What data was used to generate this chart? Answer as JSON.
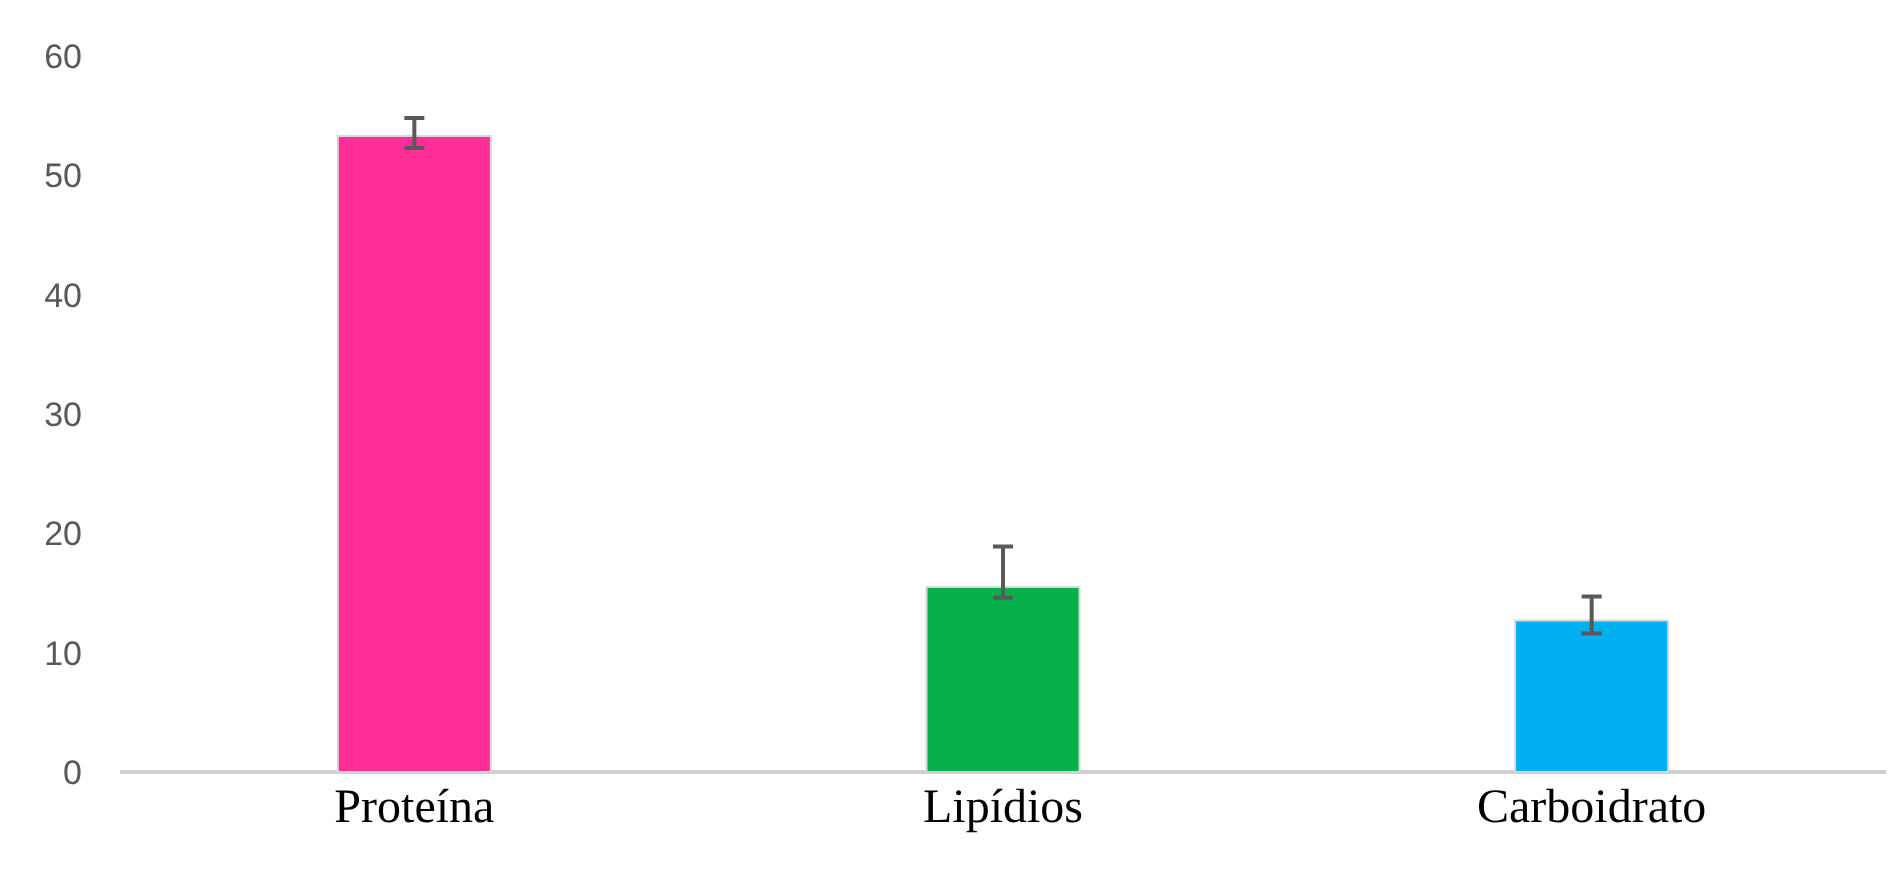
{
  "chart_data": {
    "type": "bar",
    "categories": [
      "Proteína",
      "Lipídios",
      "Carboidrato"
    ],
    "values": [
      53.3,
      15.5,
      12.7
    ],
    "colors": [
      "#ff2d95",
      "#08b04a",
      "#00b0f0"
    ],
    "errors": [
      [
        52.3,
        54.8
      ],
      [
        14.6,
        18.9
      ],
      [
        11.6,
        14.7
      ]
    ],
    "ylim": [
      0,
      60
    ],
    "yticks": [
      0,
      10,
      20,
      30,
      40,
      50,
      60
    ],
    "grid": false
  }
}
